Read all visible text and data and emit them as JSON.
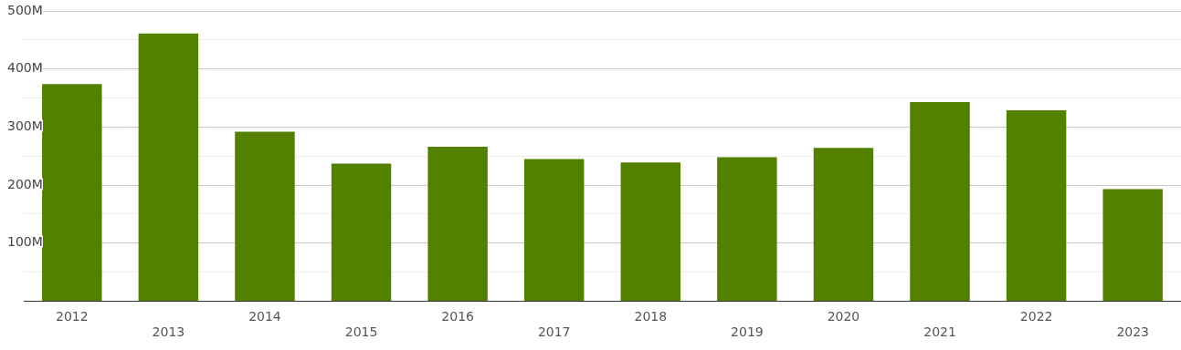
{
  "chart_data": {
    "type": "bar",
    "categories": [
      "2012",
      "2013",
      "2014",
      "2015",
      "2016",
      "2017",
      "2018",
      "2019",
      "2020",
      "2021",
      "2022",
      "2023"
    ],
    "values": [
      374,
      461,
      292,
      237,
      266,
      245,
      239,
      248,
      264,
      343,
      329,
      193
    ],
    "color": "#548000",
    "ylim": [
      0,
      500
    ],
    "yticks": [
      {
        "value": 0,
        "label": null
      },
      {
        "value": 50,
        "label": null
      },
      {
        "value": 100,
        "label": "100M"
      },
      {
        "value": 150,
        "label": null
      },
      {
        "value": 200,
        "label": "200M"
      },
      {
        "value": 250,
        "label": null
      },
      {
        "value": 300,
        "label": "300M"
      },
      {
        "value": 350,
        "label": null
      },
      {
        "value": 400,
        "label": "400M"
      },
      {
        "value": 450,
        "label": null
      },
      {
        "value": 500,
        "label": "500M"
      }
    ],
    "grid": "y"
  }
}
